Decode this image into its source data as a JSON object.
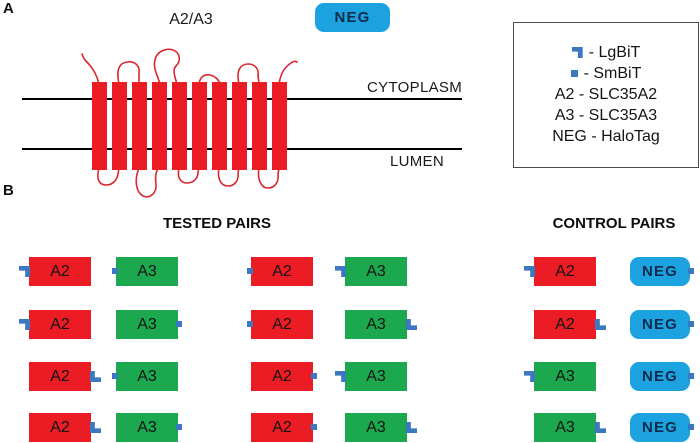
{
  "panel_a": {
    "label": "A",
    "protein_title": "A2/A3",
    "neg_box_label": "NEG",
    "membrane": {
      "top_label": "CYTOPLASM",
      "bottom_label": "LUMEN"
    },
    "helix_count": 10
  },
  "legend": {
    "items": [
      {
        "icon": "lgbit",
        "text": "- LgBiT"
      },
      {
        "icon": "smbit",
        "text": "- SmBiT"
      },
      {
        "icon": null,
        "text": "A2 - SLC35A2"
      },
      {
        "icon": null,
        "text": "A3 - SLC35A3"
      },
      {
        "icon": null,
        "text": "NEG - HaloTag"
      }
    ]
  },
  "panel_b": {
    "label": "B",
    "tested_heading": "TESTED PAIRS",
    "control_heading": "CONTROL PAIRS",
    "rows": [
      {
        "tested": [
          {
            "label": "A2",
            "kind": "a2",
            "tag": "lgbit",
            "side": "left"
          },
          {
            "label": "A3",
            "kind": "a3",
            "tag": "smbit",
            "side": "left"
          },
          {
            "label": "A2",
            "kind": "a2",
            "tag": "smbit",
            "side": "left"
          },
          {
            "label": "A3",
            "kind": "a3",
            "tag": "lgbit",
            "side": "left"
          }
        ],
        "control": [
          {
            "label": "A2",
            "kind": "a2",
            "tag": "lgbit",
            "side": "left"
          },
          {
            "label": "NEG",
            "kind": "neg",
            "tag": "smbit",
            "side": "right"
          }
        ]
      },
      {
        "tested": [
          {
            "label": "A2",
            "kind": "a2",
            "tag": "lgbit",
            "side": "left"
          },
          {
            "label": "A3",
            "kind": "a3",
            "tag": "smbit",
            "side": "right"
          },
          {
            "label": "A2",
            "kind": "a2",
            "tag": "smbit",
            "side": "left"
          },
          {
            "label": "A3",
            "kind": "a3",
            "tag": "lgbit",
            "side": "right"
          }
        ],
        "control": [
          {
            "label": "A2",
            "kind": "a2",
            "tag": "lgbit",
            "side": "right"
          },
          {
            "label": "NEG",
            "kind": "neg",
            "tag": "smbit",
            "side": "right"
          }
        ]
      },
      {
        "tested": [
          {
            "label": "A2",
            "kind": "a2",
            "tag": "lgbit",
            "side": "right"
          },
          {
            "label": "A3",
            "kind": "a3",
            "tag": "smbit",
            "side": "left"
          },
          {
            "label": "A2",
            "kind": "a2",
            "tag": "smbit",
            "side": "right"
          },
          {
            "label": "A3",
            "kind": "a3",
            "tag": "lgbit",
            "side": "left"
          }
        ],
        "control": [
          {
            "label": "A3",
            "kind": "a3",
            "tag": "lgbit",
            "side": "left"
          },
          {
            "label": "NEG",
            "kind": "neg",
            "tag": "smbit",
            "side": "right"
          }
        ]
      },
      {
        "tested": [
          {
            "label": "A2",
            "kind": "a2",
            "tag": "lgbit",
            "side": "right"
          },
          {
            "label": "A3",
            "kind": "a3",
            "tag": "smbit",
            "side": "right"
          },
          {
            "label": "A2",
            "kind": "a2",
            "tag": "smbit",
            "side": "right"
          },
          {
            "label": "A3",
            "kind": "a3",
            "tag": "lgbit",
            "side": "right"
          }
        ],
        "control": [
          {
            "label": "A3",
            "kind": "a3",
            "tag": "lgbit",
            "side": "right"
          },
          {
            "label": "NEG",
            "kind": "neg",
            "tag": "smbit",
            "side": "right"
          }
        ]
      }
    ]
  },
  "colors": {
    "a2_red": "#EB1C24",
    "a3_green": "#1CA84F",
    "neg_blue": "#1CA3DF",
    "tag_blue": "#3B78C0",
    "loop_red": "#D82830"
  }
}
